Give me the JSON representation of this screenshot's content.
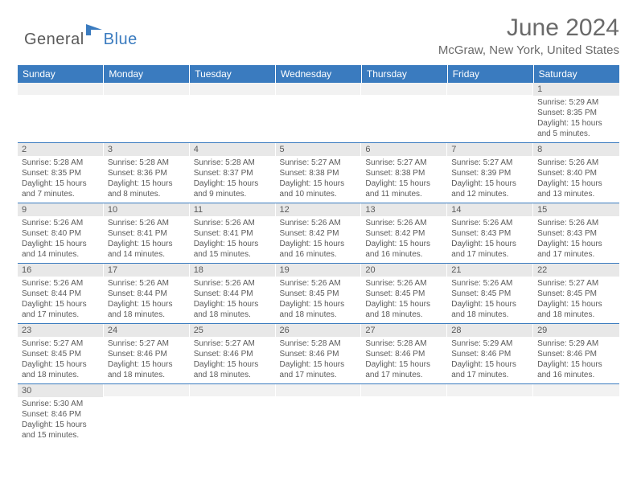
{
  "brand": {
    "part1": "General",
    "part2": "Blue"
  },
  "title": "June 2024",
  "location": "McGraw, New York, United States",
  "columns": [
    "Sunday",
    "Monday",
    "Tuesday",
    "Wednesday",
    "Thursday",
    "Friday",
    "Saturday"
  ],
  "colors": {
    "header_bg": "#3a7bbf",
    "header_text": "#ffffff",
    "daynum_bg": "#e8e8e8",
    "cell_border": "#3a7bbf",
    "text": "#5a5a5a",
    "brand_blue": "#3a7bbf"
  },
  "weeks": [
    [
      {
        "n": "",
        "sr": "",
        "ss": "",
        "dl": ""
      },
      {
        "n": "",
        "sr": "",
        "ss": "",
        "dl": ""
      },
      {
        "n": "",
        "sr": "",
        "ss": "",
        "dl": ""
      },
      {
        "n": "",
        "sr": "",
        "ss": "",
        "dl": ""
      },
      {
        "n": "",
        "sr": "",
        "ss": "",
        "dl": ""
      },
      {
        "n": "",
        "sr": "",
        "ss": "",
        "dl": ""
      },
      {
        "n": "1",
        "sr": "Sunrise: 5:29 AM",
        "ss": "Sunset: 8:35 PM",
        "dl": "Daylight: 15 hours and 5 minutes."
      }
    ],
    [
      {
        "n": "2",
        "sr": "Sunrise: 5:28 AM",
        "ss": "Sunset: 8:35 PM",
        "dl": "Daylight: 15 hours and 7 minutes."
      },
      {
        "n": "3",
        "sr": "Sunrise: 5:28 AM",
        "ss": "Sunset: 8:36 PM",
        "dl": "Daylight: 15 hours and 8 minutes."
      },
      {
        "n": "4",
        "sr": "Sunrise: 5:28 AM",
        "ss": "Sunset: 8:37 PM",
        "dl": "Daylight: 15 hours and 9 minutes."
      },
      {
        "n": "5",
        "sr": "Sunrise: 5:27 AM",
        "ss": "Sunset: 8:38 PM",
        "dl": "Daylight: 15 hours and 10 minutes."
      },
      {
        "n": "6",
        "sr": "Sunrise: 5:27 AM",
        "ss": "Sunset: 8:38 PM",
        "dl": "Daylight: 15 hours and 11 minutes."
      },
      {
        "n": "7",
        "sr": "Sunrise: 5:27 AM",
        "ss": "Sunset: 8:39 PM",
        "dl": "Daylight: 15 hours and 12 minutes."
      },
      {
        "n": "8",
        "sr": "Sunrise: 5:26 AM",
        "ss": "Sunset: 8:40 PM",
        "dl": "Daylight: 15 hours and 13 minutes."
      }
    ],
    [
      {
        "n": "9",
        "sr": "Sunrise: 5:26 AM",
        "ss": "Sunset: 8:40 PM",
        "dl": "Daylight: 15 hours and 14 minutes."
      },
      {
        "n": "10",
        "sr": "Sunrise: 5:26 AM",
        "ss": "Sunset: 8:41 PM",
        "dl": "Daylight: 15 hours and 14 minutes."
      },
      {
        "n": "11",
        "sr": "Sunrise: 5:26 AM",
        "ss": "Sunset: 8:41 PM",
        "dl": "Daylight: 15 hours and 15 minutes."
      },
      {
        "n": "12",
        "sr": "Sunrise: 5:26 AM",
        "ss": "Sunset: 8:42 PM",
        "dl": "Daylight: 15 hours and 16 minutes."
      },
      {
        "n": "13",
        "sr": "Sunrise: 5:26 AM",
        "ss": "Sunset: 8:42 PM",
        "dl": "Daylight: 15 hours and 16 minutes."
      },
      {
        "n": "14",
        "sr": "Sunrise: 5:26 AM",
        "ss": "Sunset: 8:43 PM",
        "dl": "Daylight: 15 hours and 17 minutes."
      },
      {
        "n": "15",
        "sr": "Sunrise: 5:26 AM",
        "ss": "Sunset: 8:43 PM",
        "dl": "Daylight: 15 hours and 17 minutes."
      }
    ],
    [
      {
        "n": "16",
        "sr": "Sunrise: 5:26 AM",
        "ss": "Sunset: 8:44 PM",
        "dl": "Daylight: 15 hours and 17 minutes."
      },
      {
        "n": "17",
        "sr": "Sunrise: 5:26 AM",
        "ss": "Sunset: 8:44 PM",
        "dl": "Daylight: 15 hours and 18 minutes."
      },
      {
        "n": "18",
        "sr": "Sunrise: 5:26 AM",
        "ss": "Sunset: 8:44 PM",
        "dl": "Daylight: 15 hours and 18 minutes."
      },
      {
        "n": "19",
        "sr": "Sunrise: 5:26 AM",
        "ss": "Sunset: 8:45 PM",
        "dl": "Daylight: 15 hours and 18 minutes."
      },
      {
        "n": "20",
        "sr": "Sunrise: 5:26 AM",
        "ss": "Sunset: 8:45 PM",
        "dl": "Daylight: 15 hours and 18 minutes."
      },
      {
        "n": "21",
        "sr": "Sunrise: 5:26 AM",
        "ss": "Sunset: 8:45 PM",
        "dl": "Daylight: 15 hours and 18 minutes."
      },
      {
        "n": "22",
        "sr": "Sunrise: 5:27 AM",
        "ss": "Sunset: 8:45 PM",
        "dl": "Daylight: 15 hours and 18 minutes."
      }
    ],
    [
      {
        "n": "23",
        "sr": "Sunrise: 5:27 AM",
        "ss": "Sunset: 8:45 PM",
        "dl": "Daylight: 15 hours and 18 minutes."
      },
      {
        "n": "24",
        "sr": "Sunrise: 5:27 AM",
        "ss": "Sunset: 8:46 PM",
        "dl": "Daylight: 15 hours and 18 minutes."
      },
      {
        "n": "25",
        "sr": "Sunrise: 5:27 AM",
        "ss": "Sunset: 8:46 PM",
        "dl": "Daylight: 15 hours and 18 minutes."
      },
      {
        "n": "26",
        "sr": "Sunrise: 5:28 AM",
        "ss": "Sunset: 8:46 PM",
        "dl": "Daylight: 15 hours and 17 minutes."
      },
      {
        "n": "27",
        "sr": "Sunrise: 5:28 AM",
        "ss": "Sunset: 8:46 PM",
        "dl": "Daylight: 15 hours and 17 minutes."
      },
      {
        "n": "28",
        "sr": "Sunrise: 5:29 AM",
        "ss": "Sunset: 8:46 PM",
        "dl": "Daylight: 15 hours and 17 minutes."
      },
      {
        "n": "29",
        "sr": "Sunrise: 5:29 AM",
        "ss": "Sunset: 8:46 PM",
        "dl": "Daylight: 15 hours and 16 minutes."
      }
    ],
    [
      {
        "n": "30",
        "sr": "Sunrise: 5:30 AM",
        "ss": "Sunset: 8:46 PM",
        "dl": "Daylight: 15 hours and 15 minutes."
      },
      {
        "n": "",
        "sr": "",
        "ss": "",
        "dl": ""
      },
      {
        "n": "",
        "sr": "",
        "ss": "",
        "dl": ""
      },
      {
        "n": "",
        "sr": "",
        "ss": "",
        "dl": ""
      },
      {
        "n": "",
        "sr": "",
        "ss": "",
        "dl": ""
      },
      {
        "n": "",
        "sr": "",
        "ss": "",
        "dl": ""
      },
      {
        "n": "",
        "sr": "",
        "ss": "",
        "dl": ""
      }
    ]
  ]
}
